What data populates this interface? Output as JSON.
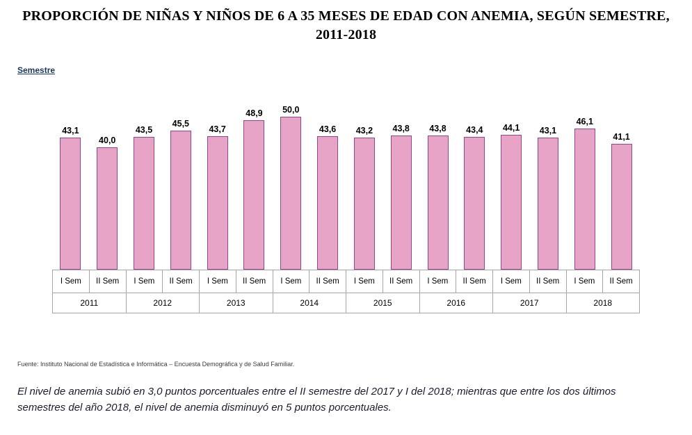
{
  "title": "PROPORCIÓN DE NIÑAS Y NIÑOS DE 6 A 35 MESES DE EDAD CON ANEMIA, SEGÚN SEMESTRE, 2011-2018",
  "axis_label": "Semestre",
  "chart_data": {
    "type": "bar",
    "title": "PROPORCIÓN DE NIÑAS Y NIÑOS DE 6 A 35 MESES DE EDAD CON ANEMIA, SEGÚN SEMESTRE, 2011-2018",
    "xlabel": "Semestre",
    "ylabel": "",
    "ylim": [
      0,
      55
    ],
    "grid": false,
    "legend": false,
    "years": [
      "2011",
      "2012",
      "2013",
      "2014",
      "2015",
      "2016",
      "2017",
      "2018"
    ],
    "semester_labels": [
      "I Sem",
      "II Sem"
    ],
    "categories": [
      "2011 I Sem",
      "2011 II Sem",
      "2012 I Sem",
      "2012 II Sem",
      "2013 I Sem",
      "2013 II Sem",
      "2014 I Sem",
      "2014 II Sem",
      "2015 I Sem",
      "2015 II Sem",
      "2016 I Sem",
      "2016 II Sem",
      "2017 I Sem",
      "2017 II Sem",
      "2018 I Sem",
      "2018 II Sem"
    ],
    "values": [
      43.1,
      40.0,
      43.5,
      45.5,
      43.7,
      48.9,
      50.0,
      43.6,
      43.2,
      43.8,
      43.8,
      43.4,
      44.1,
      43.1,
      46.1,
      41.1
    ],
    "value_labels": [
      "43,1",
      "40,0",
      "43,5",
      "45,5",
      "43,7",
      "48,9",
      "50,0",
      "43,6",
      "43,2",
      "43,8",
      "43,8",
      "43,4",
      "44,1",
      "43,1",
      "46,1",
      "41,1"
    ],
    "bar_color": "#e7a4c6",
    "bar_border_color": "#8e4a82"
  },
  "source": "Fuente: Instituto Nacional de Estadística e Informática – Encuesta Demográfica y de Salud Familiar.",
  "footnote": "El nivel de anemia subió en 3,0 puntos porcentuales entre el II semestre del 2017 y I del 2018; mientras que entre los dos últimos semestres del año 2018, el nivel de anemia disminuyó en 5 puntos porcentuales."
}
